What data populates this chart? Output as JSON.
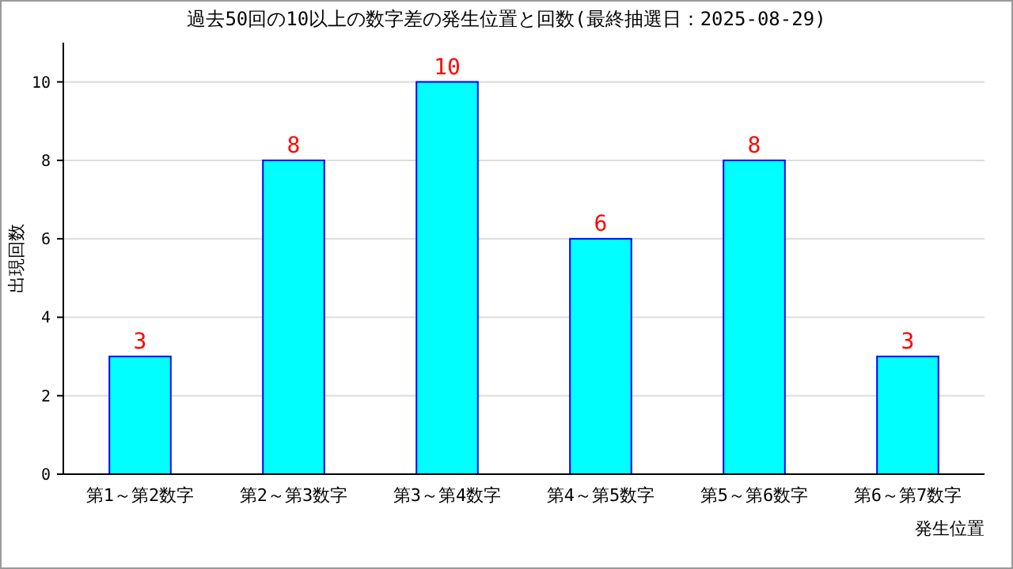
{
  "chart_data": {
    "type": "bar",
    "title": "過去50回の10以上の数字差の発生位置と回数(最終抽選日：2025-08-29)",
    "categories": [
      "第1～第2数字",
      "第2～第3数字",
      "第3～第4数字",
      "第4～第5数字",
      "第5～第6数字",
      "第6～第7数字"
    ],
    "values": [
      3,
      8,
      10,
      6,
      8,
      3
    ],
    "color": "#00ffff",
    "data_labels": true,
    "xlabel": "発生位置",
    "ylabel": "出現回数",
    "ylim": [
      0,
      11
    ],
    "yticks": [
      0,
      2,
      4,
      6,
      8,
      10
    ],
    "grid": "y"
  }
}
